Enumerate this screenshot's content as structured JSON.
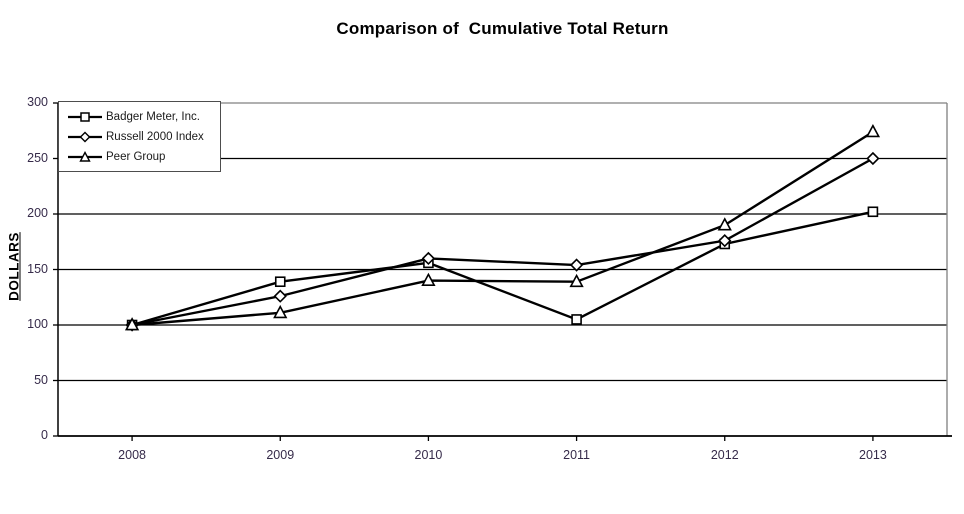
{
  "title": "Comparison of  Cumulative Total Return",
  "chart_data": {
    "type": "line",
    "title": "Comparison of  Cumulative Total Return",
    "xlabel": "",
    "ylabel": "DOLLARS",
    "categories": [
      "2008",
      "2009",
      "2010",
      "2011",
      "2012",
      "2013"
    ],
    "series": [
      {
        "name": "Badger Meter, Inc.",
        "marker": "square",
        "values": [
          100,
          139,
          156,
          105,
          173,
          202
        ]
      },
      {
        "name": "Russell 2000 Index",
        "marker": "diamond",
        "values": [
          100,
          126,
          160,
          154,
          176,
          250
        ]
      },
      {
        "name": "Peer Group",
        "marker": "triangle",
        "values": [
          100,
          111,
          140,
          139,
          190,
          274
        ]
      }
    ],
    "ylim": [
      0,
      300
    ],
    "yticks": [
      0,
      50,
      100,
      150,
      200,
      250,
      300
    ],
    "grid": true,
    "legend_position": "top-left",
    "colors": {
      "series_line": "#000000",
      "marker_fill": "#ffffff",
      "grid_line": "#000000",
      "outer_border": "#808080",
      "tick_label": "#362b4a",
      "title_text": "#000000"
    }
  }
}
